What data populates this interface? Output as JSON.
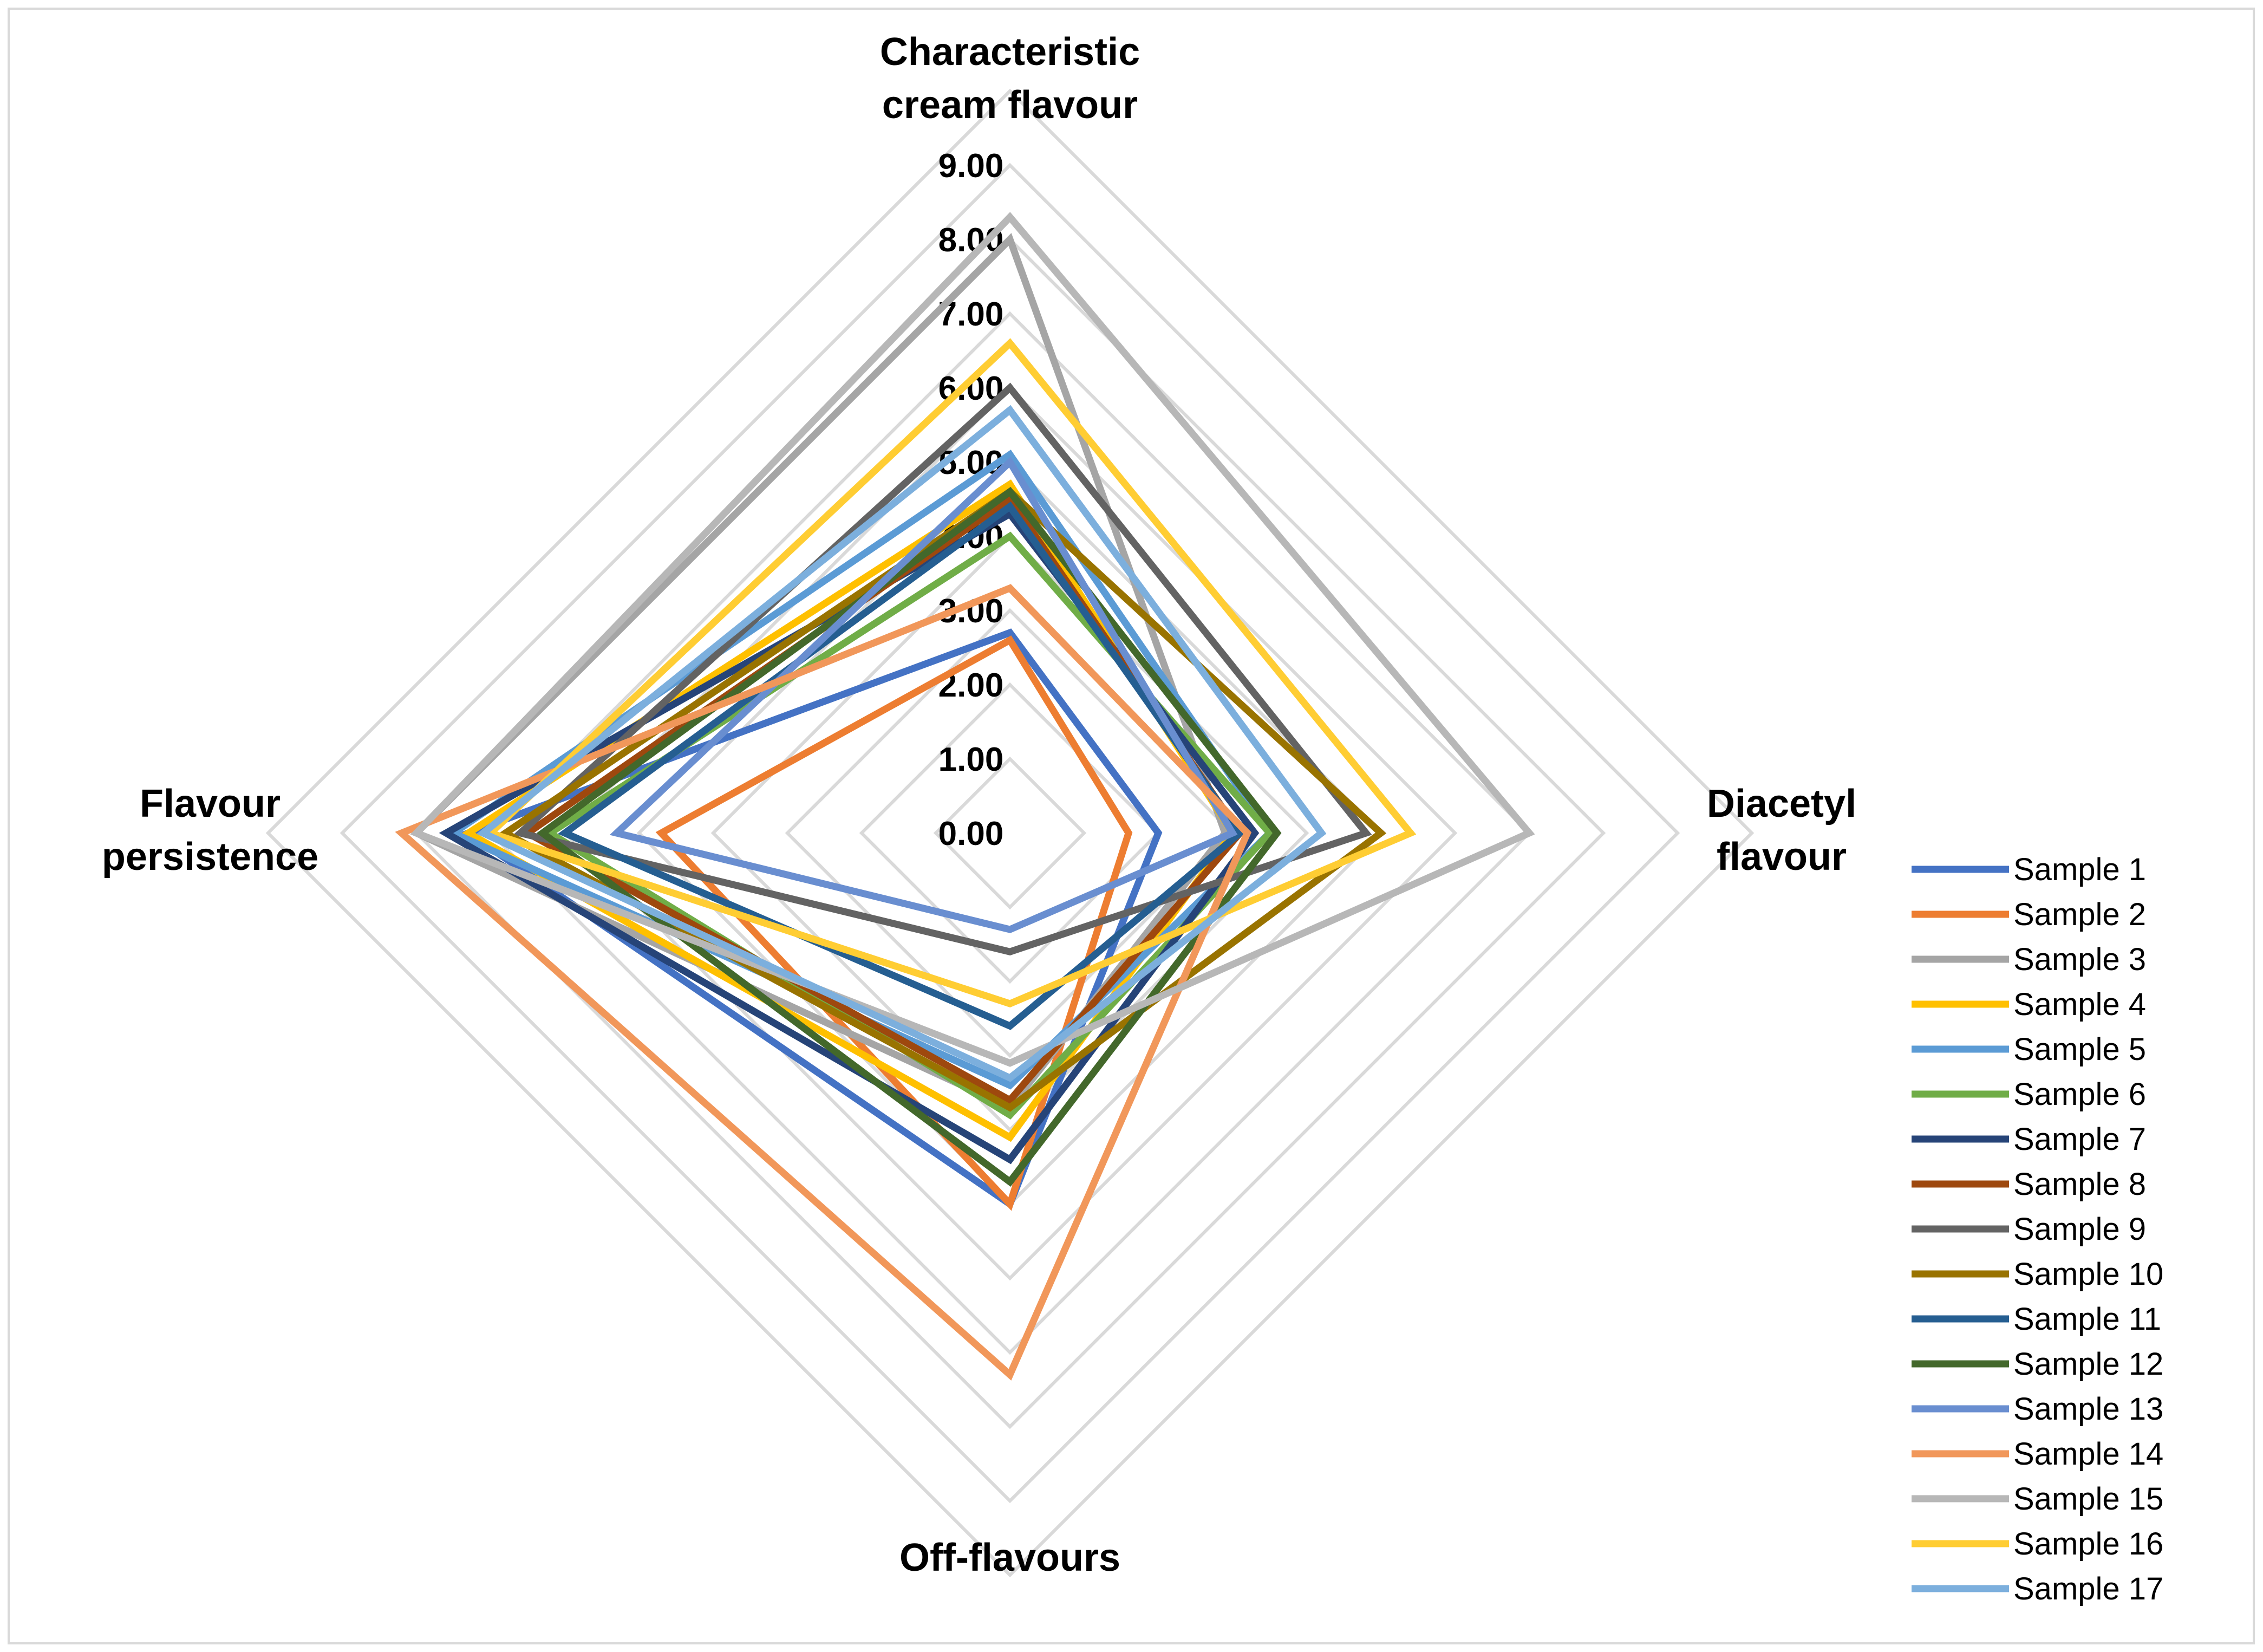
{
  "chart_data": {
    "type": "radar",
    "title": "",
    "axes": [
      "Characteristic cream flavour",
      "Diacetyl flavour",
      "Off-flavours",
      "Flavour persistence"
    ],
    "axis_title_lines": [
      [
        "Characteristic",
        "cream flavour"
      ],
      [
        "Diacetyl",
        "flavour"
      ],
      [
        "Off-flavours"
      ],
      [
        "Flavour",
        "persistence"
      ]
    ],
    "range": [
      0,
      9
    ],
    "ticks": [
      0,
      1,
      2,
      3,
      4,
      5,
      6,
      7,
      8,
      9
    ],
    "tick_labels": [
      "0.00",
      "1.00",
      "2.00",
      "3.00",
      "4.00",
      "5.00",
      "6.00",
      "7.00",
      "8.00",
      "9.00"
    ],
    "legend_position": "right",
    "series": [
      {
        "name": "Sample 1",
        "color": "#4472C4",
        "values": [
          2.7,
          2.0,
          5.0,
          7.3
        ]
      },
      {
        "name": "Sample 2",
        "color": "#ED7D31",
        "values": [
          2.6,
          1.6,
          5.0,
          4.7
        ]
      },
      {
        "name": "Sample 3",
        "color": "#A5A5A5",
        "values": [
          8.0,
          2.9,
          3.7,
          8.0
        ]
      },
      {
        "name": "Sample 4",
        "color": "#FFC000",
        "values": [
          4.7,
          3.0,
          4.1,
          7.3
        ]
      },
      {
        "name": "Sample 5",
        "color": "#5B9BD5",
        "values": [
          5.1,
          3.5,
          3.4,
          7.5
        ]
      },
      {
        "name": "Sample 6",
        "color": "#70AD47",
        "values": [
          4.0,
          3.5,
          3.8,
          6.2
        ]
      },
      {
        "name": "Sample 7",
        "color": "#264478",
        "values": [
          4.3,
          3.3,
          4.4,
          7.6
        ]
      },
      {
        "name": "Sample 8",
        "color": "#9E480E",
        "values": [
          4.5,
          3.1,
          3.6,
          6.5
        ]
      },
      {
        "name": "Sample 9",
        "color": "#636363",
        "values": [
          6.0,
          4.8,
          1.6,
          6.6
        ]
      },
      {
        "name": "Sample 10",
        "color": "#997300",
        "values": [
          4.6,
          5.0,
          3.7,
          6.8
        ]
      },
      {
        "name": "Sample 11",
        "color": "#255E91",
        "values": [
          4.4,
          3.1,
          2.6,
          6.0
        ]
      },
      {
        "name": "Sample 12",
        "color": "#43682B",
        "values": [
          4.6,
          3.6,
          4.7,
          6.3
        ]
      },
      {
        "name": "Sample 13",
        "color": "#698ED0",
        "values": [
          5.0,
          3.0,
          1.3,
          5.3
        ]
      },
      {
        "name": "Sample 14",
        "color": "#F1975A",
        "values": [
          3.3,
          3.2,
          7.3,
          8.2
        ]
      },
      {
        "name": "Sample 15",
        "color": "#B7B7B7",
        "values": [
          8.3,
          7.0,
          3.1,
          8.0
        ]
      },
      {
        "name": "Sample 16",
        "color": "#FFCD33",
        "values": [
          6.6,
          5.4,
          2.3,
          7.0
        ]
      },
      {
        "name": "Sample 17",
        "color": "#7CAFDD",
        "values": [
          5.7,
          4.2,
          3.3,
          7.1
        ]
      }
    ]
  }
}
